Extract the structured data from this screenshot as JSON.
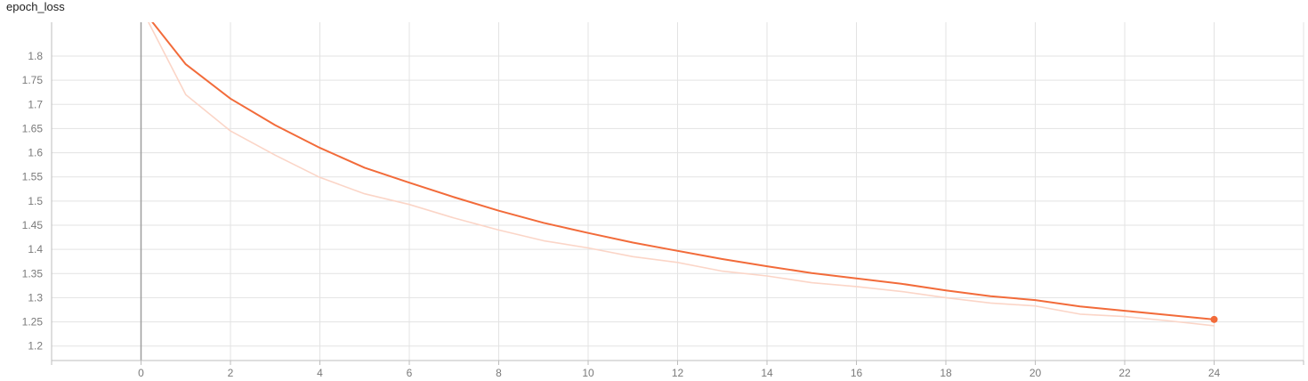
{
  "card": {
    "title": "epoch_loss"
  },
  "colors": {
    "smoothed": "#f26b3a",
    "raw": "#fbd5c7"
  },
  "chart_data": {
    "type": "line",
    "title": "epoch_loss",
    "xlabel": "",
    "ylabel": "",
    "xlim": [
      -2,
      26
    ],
    "ylim": [
      1.17,
      1.87
    ],
    "x_ticks": [
      0,
      2,
      4,
      6,
      8,
      10,
      12,
      14,
      16,
      18,
      20,
      22,
      24
    ],
    "y_ticks": [
      1.2,
      1.25,
      1.3,
      1.35,
      1.4,
      1.45,
      1.5,
      1.55,
      1.6,
      1.65,
      1.7,
      1.75,
      1.8
    ],
    "grid": true,
    "series": [
      {
        "role": "raw",
        "x": [
          0,
          1,
          2,
          3,
          4,
          5,
          6,
          7,
          8,
          9,
          10,
          11,
          12,
          13,
          14,
          15,
          16,
          17,
          18,
          19,
          20,
          21,
          22,
          23,
          24
        ],
        "y": [
          1.9,
          1.72,
          1.645,
          1.595,
          1.549,
          1.515,
          1.493,
          1.465,
          1.44,
          1.418,
          1.403,
          1.385,
          1.373,
          1.355,
          1.345,
          1.331,
          1.323,
          1.313,
          1.3,
          1.289,
          1.283,
          1.266,
          1.261,
          1.252,
          1.242
        ]
      },
      {
        "role": "smoothed",
        "x": [
          0,
          1,
          2,
          3,
          4,
          5,
          6,
          7,
          8,
          9,
          10,
          11,
          12,
          13,
          14,
          15,
          16,
          17,
          18,
          19,
          20,
          21,
          22,
          23,
          24
        ],
        "y": [
          1.9,
          1.783,
          1.712,
          1.657,
          1.61,
          1.569,
          1.538,
          1.508,
          1.48,
          1.455,
          1.434,
          1.414,
          1.397,
          1.38,
          1.365,
          1.351,
          1.34,
          1.329,
          1.315,
          1.303,
          1.295,
          1.282,
          1.273,
          1.264,
          1.255
        ]
      }
    ]
  }
}
